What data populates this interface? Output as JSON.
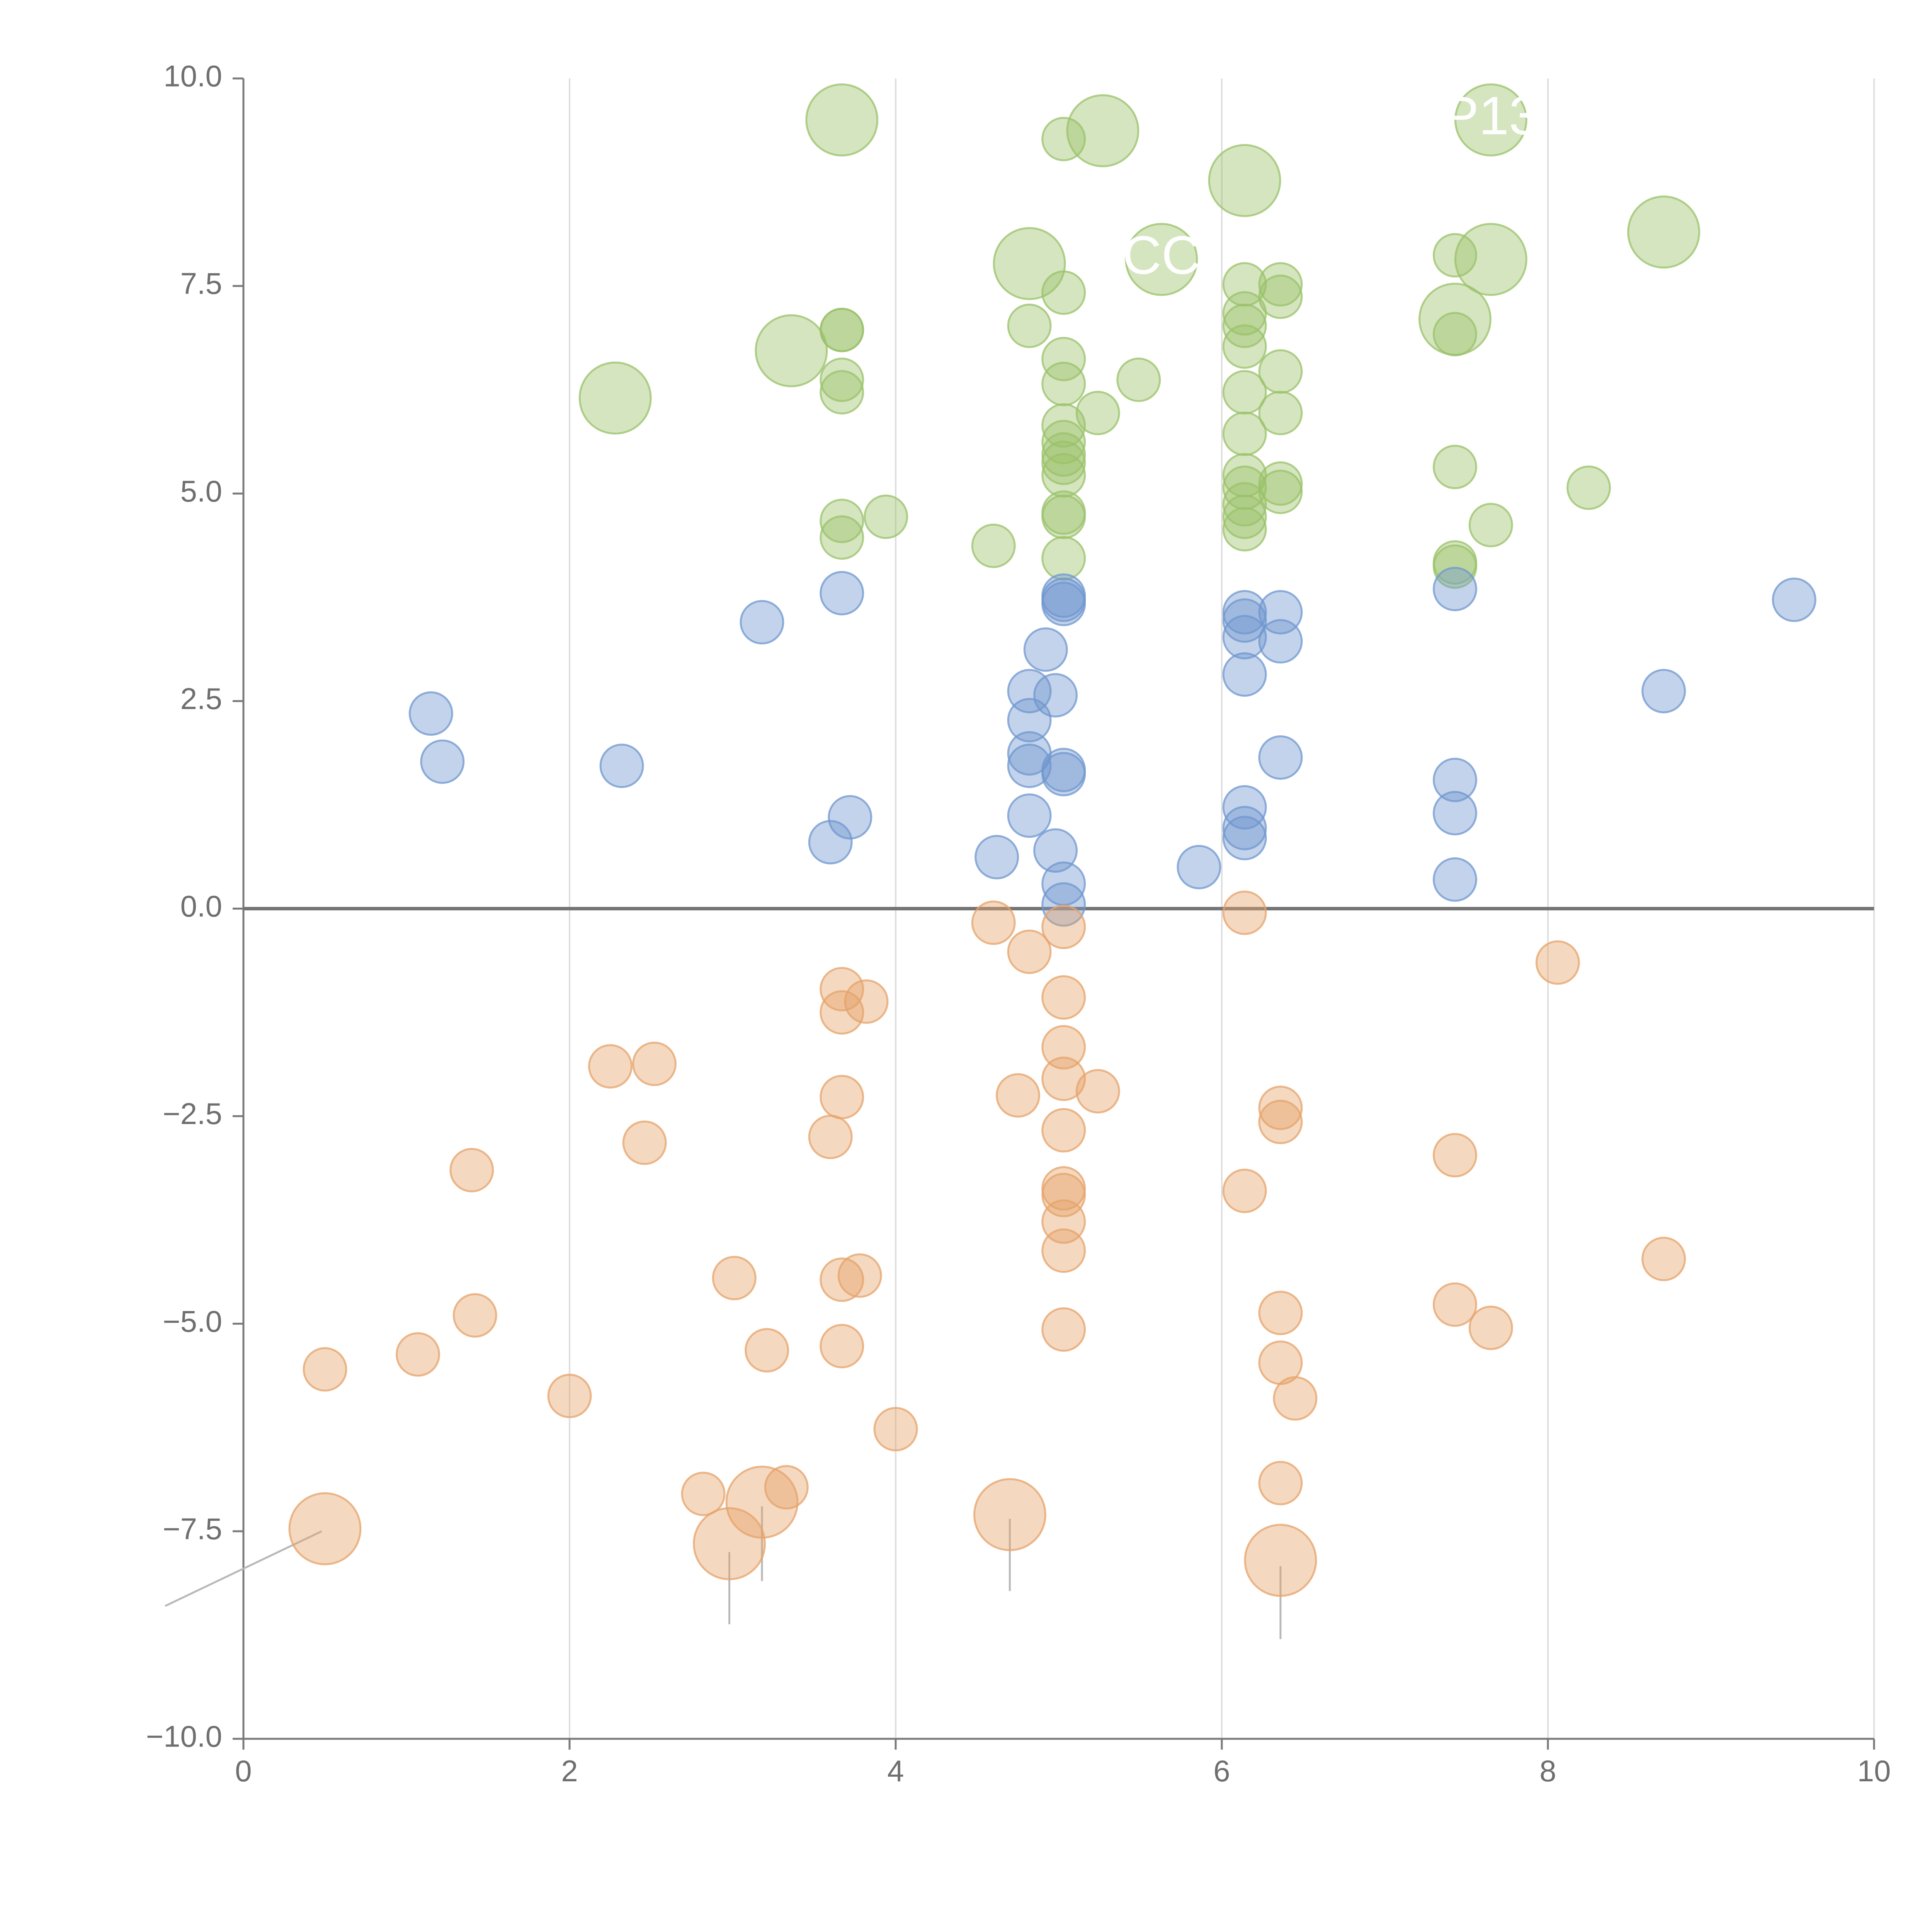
{
  "chart_data": {
    "type": "scatter",
    "title": "",
    "xlabel": "",
    "ylabel": "",
    "xlim": [
      0,
      10
    ],
    "ylim": [
      -10,
      10
    ],
    "x_ticks": [
      "0",
      "2",
      "4",
      "6",
      "8",
      "10"
    ],
    "y_ticks": [
      "10.0",
      "7.5",
      "5.0",
      "2.5",
      "0.0",
      "−2.5",
      "−5.0",
      "−7.5",
      "−10.0"
    ],
    "grid": "vertical lines at x ticks",
    "reference_line": {
      "y": 0
    },
    "colors": {
      "green": "#9ac16a",
      "blue": "#6f97cf",
      "orange": "#e5a36a",
      "axis": "#7a7a7a",
      "zero_line": "#757575",
      "grid": "#dedede",
      "leader": "#b9b9b9",
      "label": "#ffffff"
    },
    "series": [
      {
        "color_key": "green",
        "points": [
          [
            3.67,
            9.5,
            2
          ],
          [
            5.27,
            9.37,
            2
          ],
          [
            5.03,
            9.27,
            1
          ],
          [
            7.65,
            9.5,
            2
          ],
          [
            6.14,
            8.77,
            2
          ],
          [
            8.71,
            8.15,
            2
          ],
          [
            4.82,
            7.77,
            2
          ],
          [
            5.63,
            7.82,
            2
          ],
          [
            7.65,
            7.82,
            2
          ],
          [
            7.43,
            7.87,
            1
          ],
          [
            6.14,
            7.52,
            1
          ],
          [
            6.36,
            7.52,
            1
          ],
          [
            6.36,
            7.37,
            1
          ],
          [
            5.03,
            7.42,
            1
          ],
          [
            7.43,
            7.1,
            2
          ],
          [
            6.14,
            7.17,
            1
          ],
          [
            3.67,
            6.97,
            1
          ],
          [
            3.67,
            6.97,
            1
          ],
          [
            4.82,
            7.02,
            1
          ],
          [
            3.36,
            6.72,
            2
          ],
          [
            6.14,
            7.02,
            1
          ],
          [
            7.43,
            6.92,
            1
          ],
          [
            6.14,
            6.77,
            1
          ],
          [
            5.03,
            6.62,
            1
          ],
          [
            2.28,
            6.15,
            2
          ],
          [
            3.67,
            6.37,
            1
          ],
          [
            3.67,
            6.22,
            1
          ],
          [
            5.03,
            6.32,
            1
          ],
          [
            5.49,
            6.37,
            1
          ],
          [
            6.36,
            6.47,
            1
          ],
          [
            5.24,
            5.97,
            1
          ],
          [
            6.36,
            5.97,
            1
          ],
          [
            6.14,
            6.22,
            1
          ],
          [
            5.03,
            5.82,
            1
          ],
          [
            6.14,
            5.72,
            1
          ],
          [
            5.03,
            5.62,
            1
          ],
          [
            5.03,
            5.47,
            1
          ],
          [
            5.03,
            5.37,
            1
          ],
          [
            7.43,
            5.32,
            1
          ],
          [
            6.14,
            5.22,
            1
          ],
          [
            5.03,
            5.22,
            1
          ],
          [
            6.36,
            5.12,
            1
          ],
          [
            6.14,
            5.07,
            1
          ],
          [
            6.36,
            5.02,
            1
          ],
          [
            8.25,
            5.07,
            1
          ],
          [
            6.14,
            4.87,
            1
          ],
          [
            5.03,
            4.77,
            1
          ],
          [
            5.03,
            4.72,
            1
          ],
          [
            6.14,
            4.72,
            1
          ],
          [
            3.67,
            4.67,
            1
          ],
          [
            3.94,
            4.72,
            1
          ],
          [
            7.65,
            4.62,
            1
          ],
          [
            6.14,
            4.57,
            1
          ],
          [
            3.67,
            4.47,
            1
          ],
          [
            4.6,
            4.37,
            1
          ],
          [
            5.03,
            4.22,
            1
          ],
          [
            7.43,
            4.17,
            1
          ],
          [
            7.43,
            4.12,
            1
          ]
        ]
      },
      {
        "color_key": "blue",
        "points": [
          [
            3.67,
            3.8,
            1
          ],
          [
            3.18,
            3.45,
            1
          ],
          [
            5.03,
            3.77,
            1
          ],
          [
            5.03,
            3.72,
            1
          ],
          [
            5.03,
            3.67,
            1
          ],
          [
            6.14,
            3.57,
            1
          ],
          [
            6.36,
            3.57,
            1
          ],
          [
            6.14,
            3.47,
            1
          ],
          [
            7.43,
            3.85,
            1
          ],
          [
            9.51,
            3.72,
            1
          ],
          [
            6.14,
            3.27,
            1
          ],
          [
            6.36,
            3.22,
            1
          ],
          [
            4.92,
            3.12,
            1
          ],
          [
            6.14,
            2.82,
            1
          ],
          [
            8.71,
            2.62,
            1
          ],
          [
            4.82,
            2.62,
            1
          ],
          [
            4.98,
            2.57,
            1
          ],
          [
            1.15,
            2.35,
            1
          ],
          [
            4.82,
            2.27,
            1
          ],
          [
            4.82,
            1.87,
            1
          ],
          [
            6.36,
            1.82,
            1
          ],
          [
            1.22,
            1.77,
            1
          ],
          [
            2.32,
            1.72,
            1
          ],
          [
            4.82,
            1.72,
            1
          ],
          [
            5.03,
            1.67,
            1
          ],
          [
            5.03,
            1.62,
            1
          ],
          [
            7.43,
            1.55,
            1
          ],
          [
            6.14,
            1.22,
            1
          ],
          [
            7.43,
            1.15,
            1
          ],
          [
            3.72,
            1.1,
            1
          ],
          [
            4.82,
            1.12,
            1
          ],
          [
            6.14,
            0.97,
            1
          ],
          [
            6.14,
            0.85,
            1
          ],
          [
            3.6,
            0.8,
            1
          ],
          [
            4.98,
            0.7,
            1
          ],
          [
            4.62,
            0.62,
            1
          ],
          [
            5.86,
            0.5,
            1
          ],
          [
            7.43,
            0.35,
            1
          ],
          [
            5.03,
            0.3,
            1
          ],
          [
            5.03,
            0.05,
            1
          ]
        ]
      },
      {
        "color_key": "orange",
        "points": [
          [
            4.6,
            -0.17,
            1
          ],
          [
            6.14,
            -0.05,
            1
          ],
          [
            5.03,
            -0.22,
            1
          ],
          [
            4.82,
            -0.52,
            1
          ],
          [
            8.06,
            -0.65,
            1
          ],
          [
            3.67,
            -0.97,
            1
          ],
          [
            3.82,
            -1.12,
            1
          ],
          [
            5.03,
            -1.07,
            1
          ],
          [
            3.67,
            -1.25,
            1
          ],
          [
            5.03,
            -1.67,
            1
          ],
          [
            2.25,
            -1.9,
            1
          ],
          [
            2.52,
            -1.87,
            1
          ],
          [
            5.03,
            -2.05,
            1
          ],
          [
            5.24,
            -2.2,
            1
          ],
          [
            4.75,
            -2.25,
            1
          ],
          [
            3.67,
            -2.27,
            1
          ],
          [
            6.36,
            -2.4,
            1
          ],
          [
            6.36,
            -2.57,
            1
          ],
          [
            5.03,
            -2.67,
            1
          ],
          [
            3.6,
            -2.75,
            1
          ],
          [
            2.46,
            -2.82,
            1
          ],
          [
            7.43,
            -2.97,
            1
          ],
          [
            1.4,
            -3.15,
            1
          ],
          [
            6.14,
            -3.4,
            1
          ],
          [
            5.03,
            -3.37,
            1
          ],
          [
            5.03,
            -3.45,
            1
          ],
          [
            5.03,
            -3.77,
            1
          ],
          [
            5.03,
            -4.12,
            1
          ],
          [
            8.71,
            -4.22,
            1
          ],
          [
            3.01,
            -4.45,
            1
          ],
          [
            3.67,
            -4.47,
            1
          ],
          [
            3.78,
            -4.42,
            1
          ],
          [
            7.43,
            -4.77,
            1
          ],
          [
            6.36,
            -4.87,
            1
          ],
          [
            1.42,
            -4.9,
            1
          ],
          [
            5.03,
            -5.07,
            1
          ],
          [
            7.65,
            -5.05,
            1
          ],
          [
            3.67,
            -5.27,
            1
          ],
          [
            3.21,
            -5.32,
            1
          ],
          [
            1.07,
            -5.37,
            1
          ],
          [
            6.36,
            -5.47,
            1
          ],
          [
            0.5,
            -5.55,
            1
          ],
          [
            2.0,
            -5.87,
            1
          ],
          [
            6.45,
            -5.9,
            1
          ],
          [
            4.0,
            -6.27,
            1
          ],
          [
            6.36,
            -6.92,
            1
          ],
          [
            3.33,
            -6.97,
            1
          ],
          [
            2.82,
            -7.05,
            1
          ],
          [
            3.18,
            -7.15,
            2
          ],
          [
            4.7,
            -7.3,
            2
          ],
          [
            0.5,
            -7.47,
            2
          ],
          [
            2.98,
            -7.65,
            2
          ],
          [
            6.36,
            -7.85,
            2
          ]
        ]
      }
    ],
    "point_labels": [
      {
        "text": "CC",
        "x": 5.63,
        "y": 7.82
      },
      {
        "text": "P13",
        "x": 7.65,
        "y": 9.5
      }
    ],
    "leader_lines": [
      [
        0.48,
        -7.5,
        -0.48,
        -8.4
      ],
      [
        2.98,
        -7.75,
        2.98,
        -8.62
      ],
      [
        3.18,
        -7.2,
        3.18,
        -8.1
      ],
      [
        4.7,
        -7.35,
        4.7,
        -8.22
      ],
      [
        6.36,
        -7.92,
        6.36,
        -8.8
      ],
      [
        3.67,
        9.5,
        3.35,
        9.55
      ],
      [
        5.27,
        9.37,
        5.03,
        9.43
      ],
      [
        6.14,
        8.77,
        6.06,
        9.05
      ],
      [
        8.71,
        8.15,
        8.9,
        8.25
      ],
      [
        4.82,
        7.77,
        4.77,
        7.4
      ],
      [
        7.65,
        7.82,
        7.57,
        8.0
      ],
      [
        7.43,
        7.1,
        7.46,
        6.8
      ],
      [
        3.36,
        6.72,
        3.18,
        6.55
      ],
      [
        2.28,
        6.15,
        2.28,
        6.5
      ]
    ]
  }
}
